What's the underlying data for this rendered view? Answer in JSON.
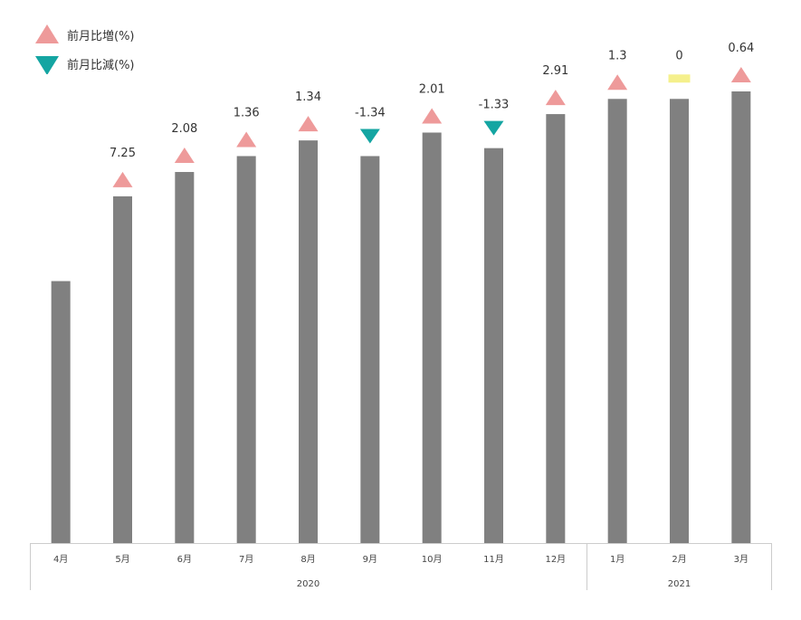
{
  "legend": {
    "increase_label": "前月比増(%)",
    "decrease_label": "前月比減(%)",
    "increase_color": "#ee9a9a",
    "decrease_color": "#14a5a2"
  },
  "chart_data": {
    "type": "bar",
    "title": "",
    "xlabel": "",
    "ylabel": "",
    "categories": [
      "4月",
      "5月",
      "6月",
      "7月",
      "8月",
      "9月",
      "10月",
      "11月",
      "12月",
      "1月",
      "2月",
      "3月"
    ],
    "groups": [
      {
        "label": "2020",
        "start": 0,
        "end": 8
      },
      {
        "label": "2021",
        "start": 9,
        "end": 11
      }
    ],
    "series": [
      {
        "values": [
          100,
          107.25,
          109.33,
          110.69,
          112.03,
          110.69,
          112.7,
          111.37,
          114.28,
          115.58,
          115.58,
          116.22
        ],
        "color": "#808080"
      }
    ],
    "change_labels": [
      null,
      "7.25",
      "2.08",
      "1.36",
      "1.34",
      "-1.34",
      "2.01",
      "-1.33",
      "2.91",
      "1.3",
      "0",
      "0.64"
    ],
    "change_direction": [
      null,
      "up",
      "up",
      "up",
      "up",
      "down",
      "up",
      "down",
      "up",
      "up",
      "flat",
      "up"
    ],
    "flat_color": "#f5f08c",
    "ylim": [
      77.6,
      116.22
    ],
    "grid": false,
    "legend_position": "top-left"
  }
}
